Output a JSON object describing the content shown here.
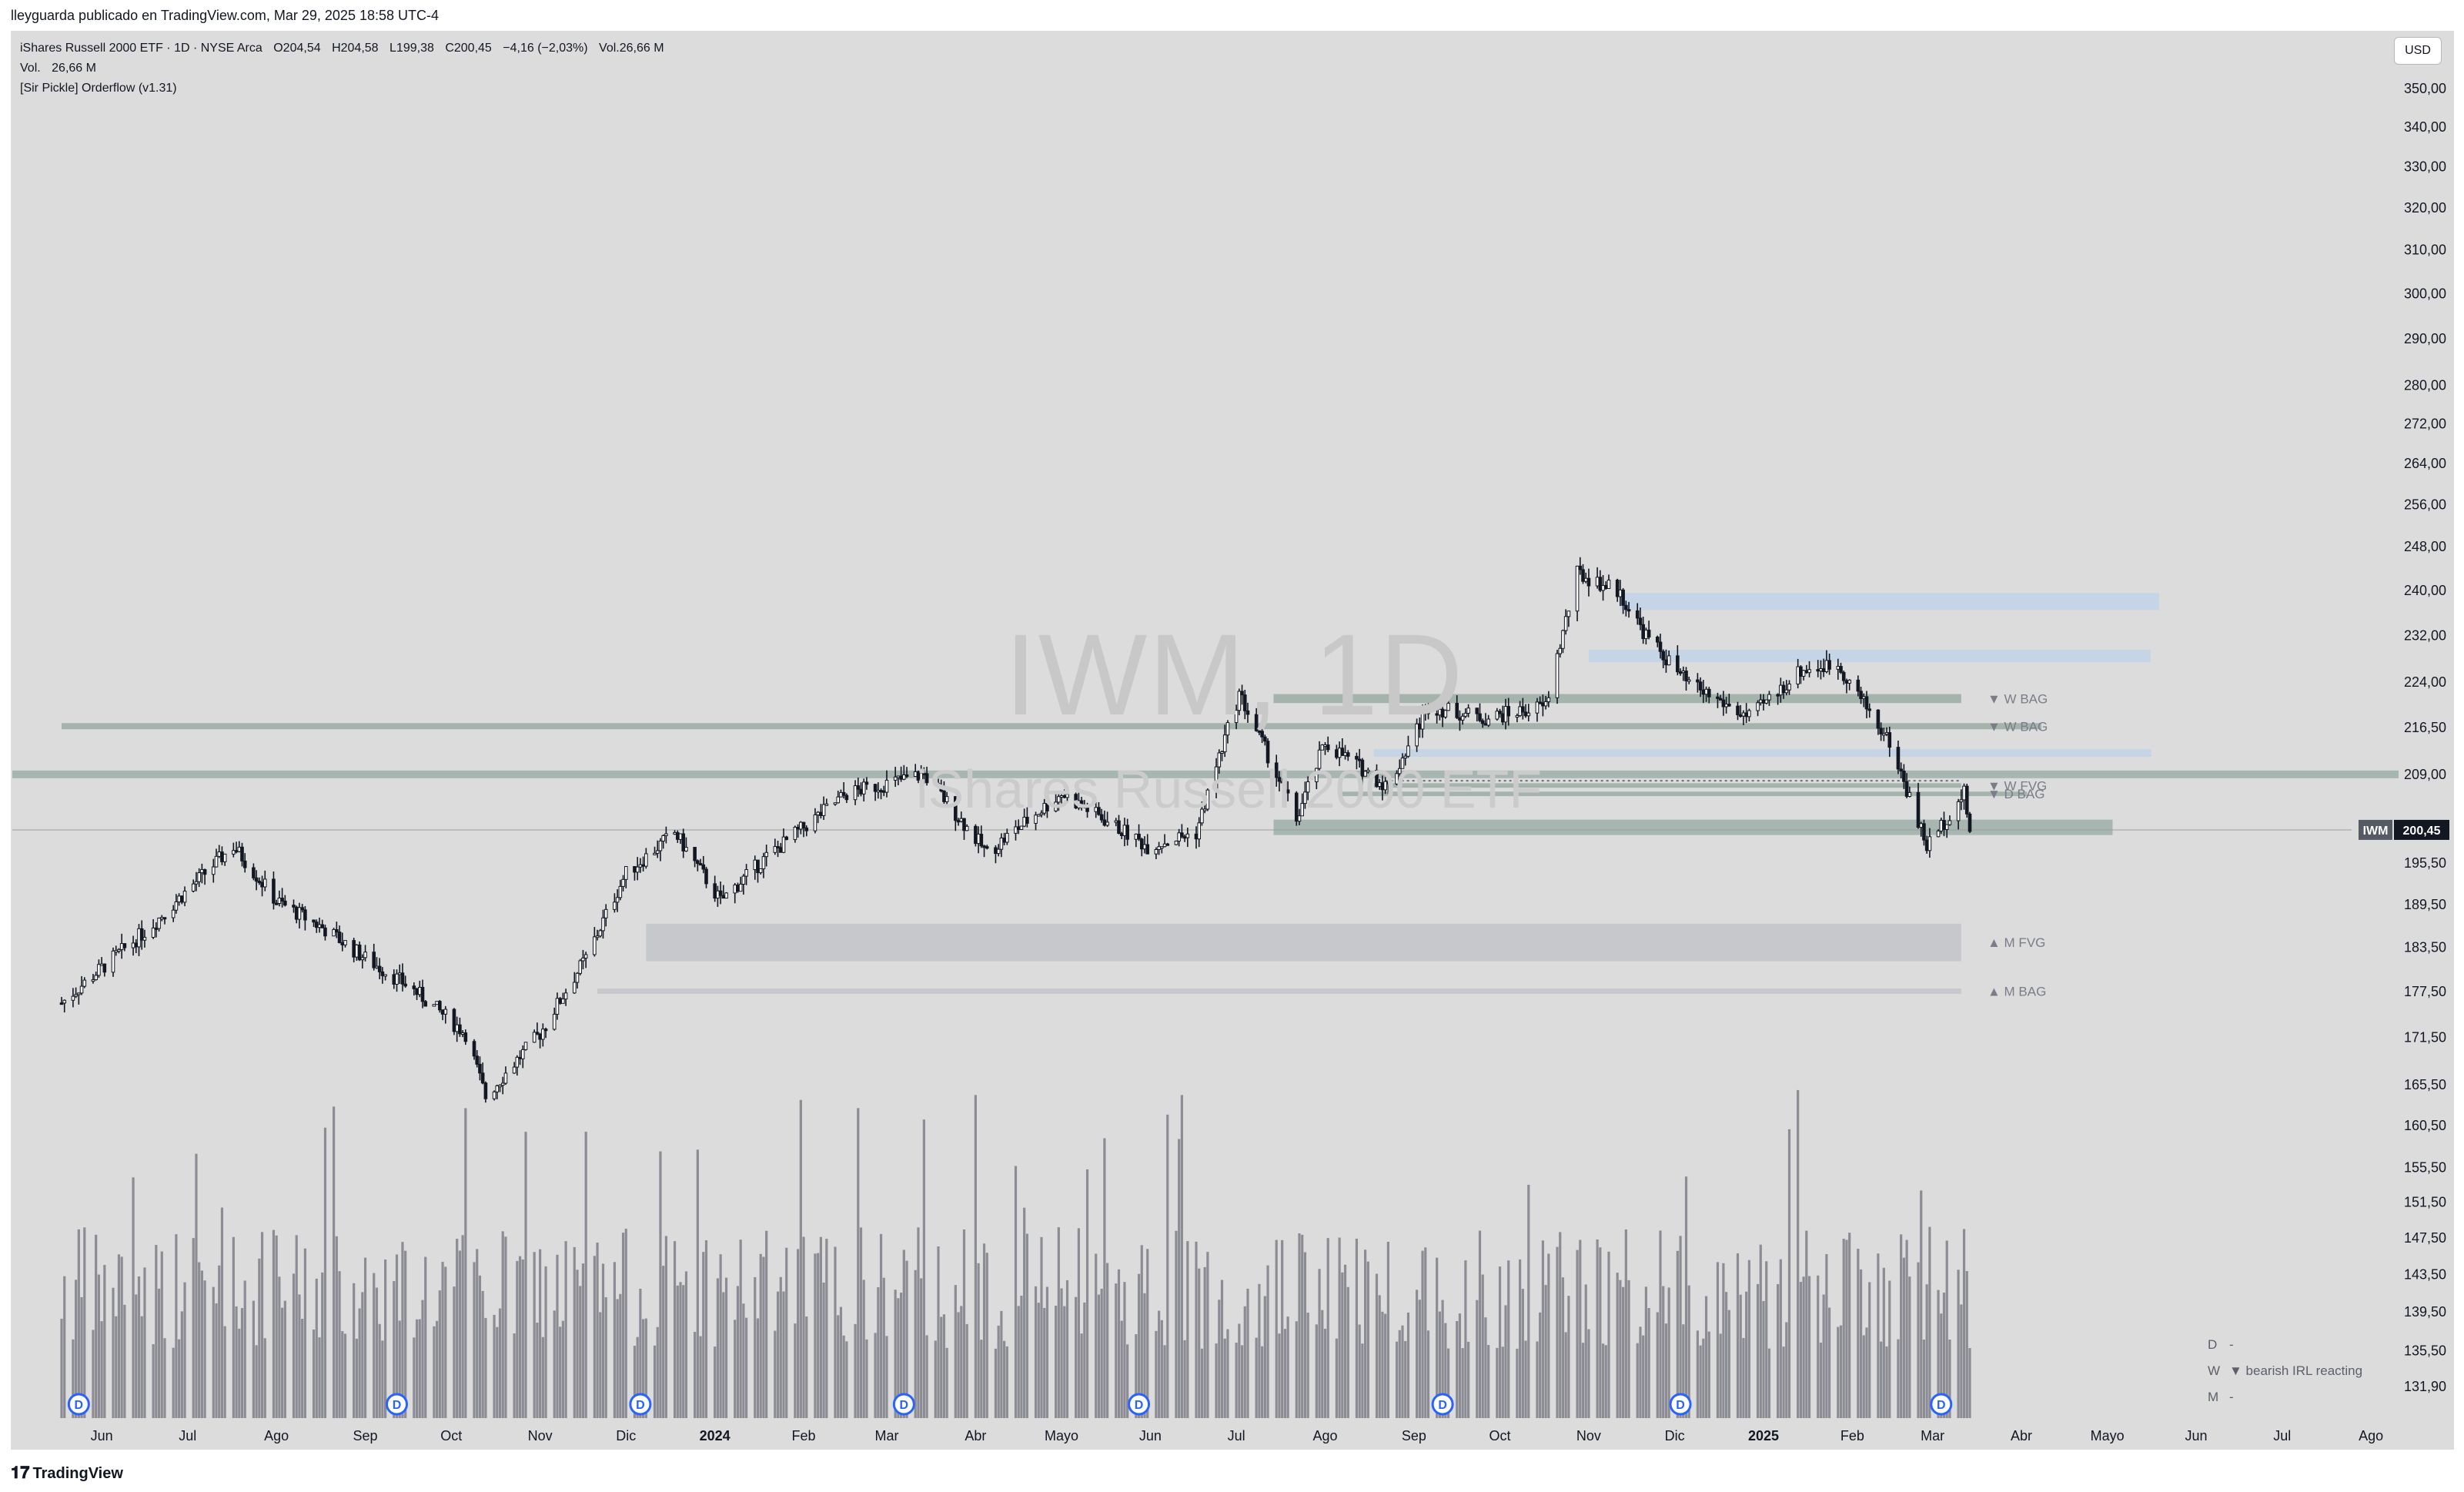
{
  "header": {
    "published_by": "lleyguarda publicado en TradingView.com, Mar 29, 2025 18:58 UTC-4"
  },
  "legend": {
    "symbol_line": "iShares Russell 2000 ETF · 1D · NYSE Arca",
    "open": "O204,54",
    "high": "H204,58",
    "low": "L199,38",
    "close": "C200,45",
    "change": "−4,16 (−2,03%)",
    "volume": "Vol.26,66 M",
    "vol_label": "Vol.",
    "vol_value": "26,66 M",
    "indicator": "[Sir Pickle] Orderflow (v1.31)"
  },
  "currency_button": "USD",
  "watermark": {
    "ticker": "IWM, 1D",
    "name": "iShares Russell 2000 ETF"
  },
  "price_tag": {
    "symbol": "IWM",
    "value": "200,45"
  },
  "footer": {
    "brand": "TradingView"
  },
  "status_table": [
    {
      "k": "D",
      "v": "-"
    },
    {
      "k": "W",
      "v": "▼ bearish IRL reacting"
    },
    {
      "k": "M",
      "v": "-"
    }
  ],
  "colors": {
    "background": "#dcdcdc",
    "candle": "#131722",
    "volume": "#8c8c94",
    "zone_green": "#9aada5",
    "zone_blue": "#c5d5e6",
    "zone_gray": "#c3c4c8",
    "dividend": "#2962ff"
  },
  "chart_data": {
    "type": "candlestick",
    "title": "iShares Russell 2000 ETF · 1D · NYSE Arca",
    "y_scale": "log",
    "ylim": [
      129,
      360
    ],
    "y_ticks": [
      "350,00",
      "340,00",
      "330,00",
      "320,00",
      "310,00",
      "300,00",
      "290,00",
      "280,00",
      "272,00",
      "264,00",
      "256,00",
      "248,00",
      "240,00",
      "232,00",
      "224,00",
      "216,50",
      "209,00",
      "195,50",
      "189,50",
      "183,50",
      "177,50",
      "171,50",
      "165,50",
      "160,50",
      "155,50",
      "151,50",
      "147,50",
      "143,50",
      "139,50",
      "135,50",
      "131,90"
    ],
    "x_ticks": [
      "Jun",
      "Jul",
      "Ago",
      "Sep",
      "Oct",
      "Nov",
      "Dic",
      "2024",
      "Feb",
      "Mar",
      "Abr",
      "Mayo",
      "Jun",
      "Jul",
      "Ago",
      "Sep",
      "Oct",
      "Nov",
      "Dic",
      "2025",
      "Feb",
      "Mar",
      "Abr",
      "Mayo",
      "Jun",
      "Jul",
      "Ago"
    ],
    "price_path_months": [
      "2023-06-01",
      "2023-07-01",
      "2023-07-31",
      "2023-08-15",
      "2023-09-01",
      "2023-09-15",
      "2023-10-01",
      "2023-10-20",
      "2023-10-27",
      "2023-11-15",
      "2023-12-01",
      "2023-12-15",
      "2024-01-01",
      "2024-01-17",
      "2024-02-01",
      "2024-03-01",
      "2024-03-28",
      "2024-04-19",
      "2024-05-15",
      "2024-06-14",
      "2024-07-01",
      "2024-07-16",
      "2024-08-05",
      "2024-08-15",
      "2024-09-06",
      "2024-09-20",
      "2024-10-10",
      "2024-10-31",
      "2024-11-11",
      "2024-11-25",
      "2024-12-05",
      "2024-12-19",
      "2025-01-10",
      "2025-01-28",
      "2025-02-10",
      "2025-02-28",
      "2025-03-13",
      "2025-03-26",
      "2025-03-28"
    ],
    "price_path_values": [
      176,
      186,
      198,
      190,
      186,
      182,
      178,
      172,
      164,
      172,
      182,
      194,
      200,
      190,
      196,
      206,
      209,
      197,
      206,
      198,
      200,
      222,
      202,
      214,
      207,
      220,
      218,
      220,
      243,
      240,
      232,
      224,
      218,
      226,
      227,
      214,
      198,
      206,
      200.45
    ],
    "volume_note": "daily volume histogram (unscaled, in bars at bottom)",
    "last_close": 200.45,
    "zones": [
      {
        "label": "▼ W BAG",
        "low": 220.5,
        "high": 222.0
      },
      {
        "label": "▼ W BAG",
        "low": 216.2,
        "high": 217.2
      },
      {
        "label": "▼ W FVG",
        "low": 206.9,
        "high": 207.6
      },
      {
        "label": "▼ D BAG",
        "low": 205.6,
        "high": 206.3
      },
      {
        "label": "▲ M FVG",
        "low": 181.6,
        "high": 186.8
      },
      {
        "label": "▲ M BAG",
        "low": 177.2,
        "high": 177.9
      }
    ],
    "dividend_markers": [
      "2023-06-07",
      "2023-09-26",
      "2023-12-20",
      "2024-03-21",
      "2024-06-11",
      "2024-09-25",
      "2024-12-17",
      "2025-03-18"
    ],
    "legend_position": "top-left"
  }
}
